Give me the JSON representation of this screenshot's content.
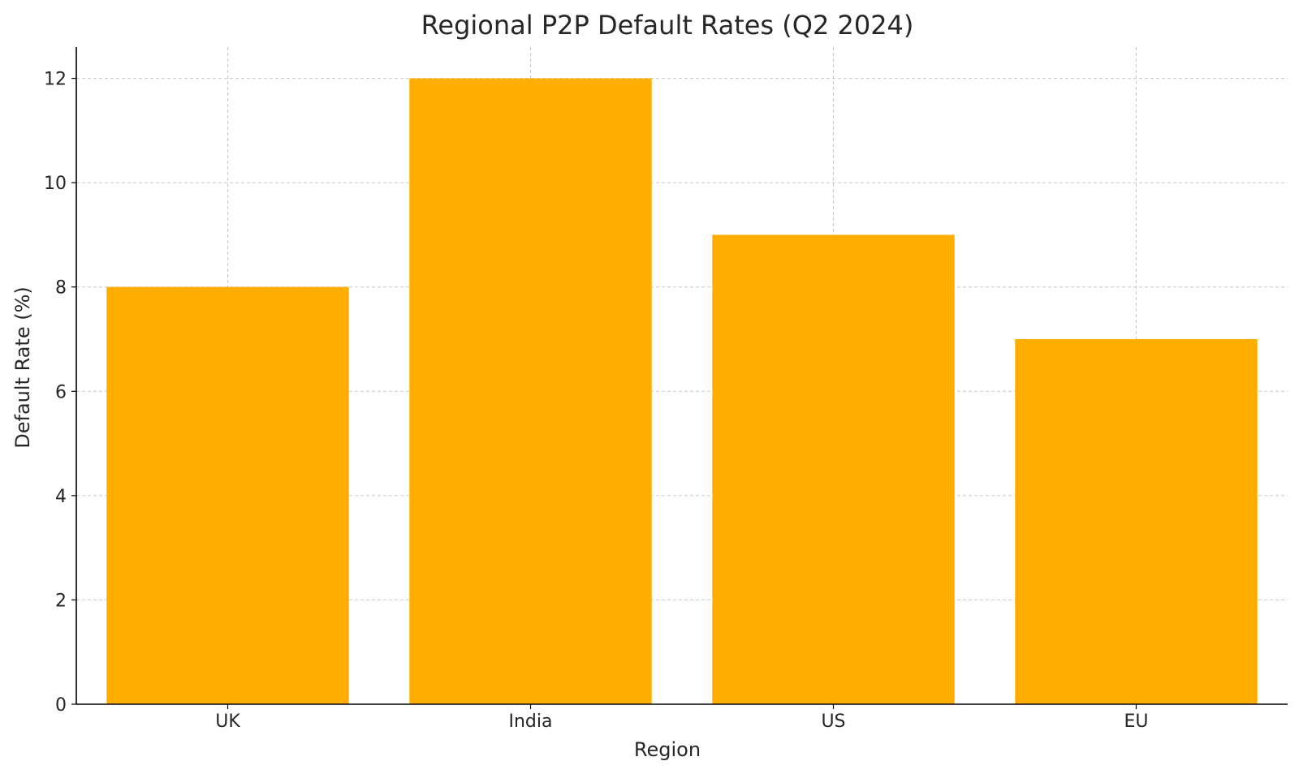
{
  "chart_data": {
    "type": "bar",
    "title": "Regional P2P Default Rates (Q2 2024)",
    "xlabel": "Region",
    "ylabel": "Default Rate (%)",
    "categories": [
      "UK",
      "India",
      "US",
      "EU"
    ],
    "values": [
      8,
      12,
      9,
      7
    ],
    "yticks": [
      0,
      2,
      4,
      6,
      8,
      10,
      12
    ],
    "ylim": [
      0,
      12.6
    ],
    "grid": true,
    "colors": {
      "bar": "#FFAE00",
      "grid": "#c8c8c8",
      "axis": "#000000",
      "text": "#262626"
    }
  }
}
